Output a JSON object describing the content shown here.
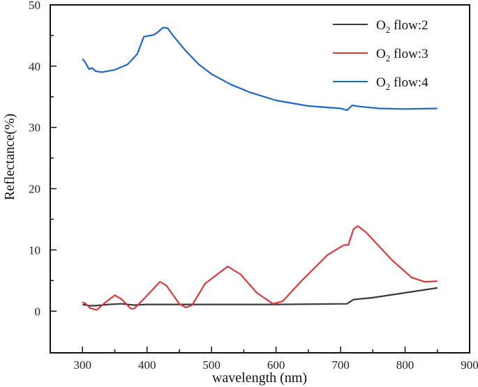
{
  "chart_data": {
    "type": "line",
    "title": "",
    "xlabel": "wavelength (nm)",
    "ylabel": "Reflectance(%)",
    "xlim": [
      250,
      900
    ],
    "ylim": [
      -6.8,
      50
    ],
    "xticks": [
      300,
      400,
      500,
      600,
      700,
      800,
      900
    ],
    "yticks": [
      0,
      10,
      20,
      30,
      40,
      50
    ],
    "grid": false,
    "legend_position": "top-right",
    "series": [
      {
        "name": "O2 flow:2",
        "legend_main": "O",
        "legend_sub": "2",
        "legend_rest": " flow:2",
        "color": "#3a3a3a",
        "x": [
          300,
          310,
          320,
          340,
          360,
          380,
          400,
          500,
          600,
          710,
          720,
          750,
          800,
          850
        ],
        "y": [
          1.1,
          0.9,
          0.9,
          1.1,
          1.2,
          1.0,
          1.1,
          1.1,
          1.1,
          1.2,
          1.9,
          2.2,
          3.0,
          3.8
        ]
      },
      {
        "name": "O2 flow:3",
        "legend_main": "O",
        "legend_sub": "2",
        "legend_rest": " flow:3",
        "color": "#d63a3a",
        "x": [
          300,
          305,
          312,
          322,
          335,
          350,
          360,
          375,
          380,
          395,
          420,
          430,
          450,
          460,
          470,
          490,
          525,
          545,
          570,
          595,
          610,
          640,
          680,
          705,
          712,
          720,
          727,
          740,
          780,
          810,
          830,
          850
        ],
        "y": [
          1.5,
          1.2,
          0.5,
          0.2,
          1.4,
          2.6,
          2.0,
          0.4,
          0.4,
          2.0,
          4.8,
          4.2,
          1.2,
          0.6,
          1.0,
          4.5,
          7.3,
          6.0,
          3.0,
          1.2,
          1.6,
          5.0,
          9.2,
          10.8,
          10.8,
          13.4,
          13.9,
          12.8,
          8.3,
          5.5,
          4.8,
          4.9
        ]
      },
      {
        "name": "O2 flow:4",
        "legend_main": "O",
        "legend_sub": "2",
        "legend_rest": " flow:4",
        "color": "#1f66c9",
        "x": [
          300,
          305,
          310,
          315,
          320,
          330,
          350,
          370,
          385,
          395,
          410,
          415,
          425,
          432,
          440,
          460,
          480,
          500,
          530,
          560,
          600,
          650,
          700,
          710,
          718,
          730,
          760,
          800,
          850
        ],
        "y": [
          41.2,
          40.5,
          39.5,
          39.7,
          39.2,
          39.0,
          39.4,
          40.3,
          42.0,
          44.8,
          45.1,
          45.4,
          46.3,
          46.2,
          45.0,
          42.5,
          40.3,
          38.7,
          37.0,
          35.7,
          34.4,
          33.5,
          33.1,
          32.8,
          33.6,
          33.4,
          33.1,
          33.0,
          33.1
        ]
      }
    ]
  }
}
